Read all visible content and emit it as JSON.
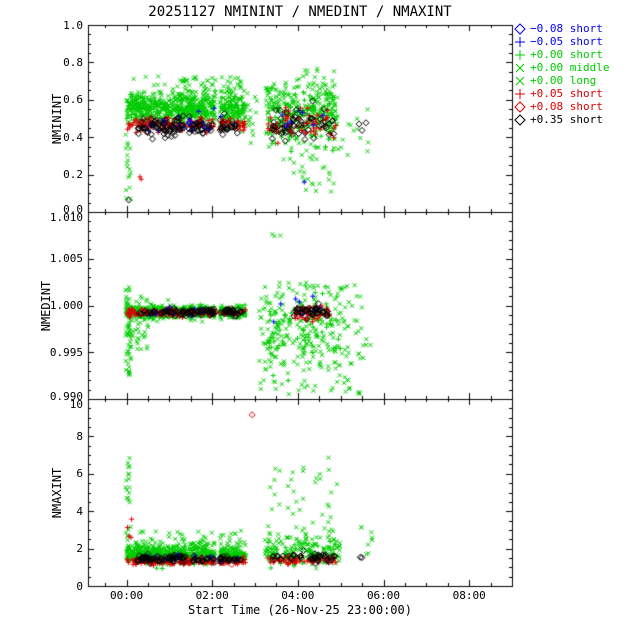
{
  "chart_data": {
    "type": "scatter",
    "title": "20251127 NMININT / NMEDINT / NMAXINT",
    "xlabel": "Start Time (26-Nov-25 23:00:00)",
    "x_range_hours": [
      -0.9,
      9.0
    ],
    "xminor": 0.5,
    "x_gaps": [
      [
        2.08,
        2.18
      ]
    ],
    "xticks": [
      {
        "v": 0,
        "label": "00:00"
      },
      {
        "v": 2,
        "label": "02:00"
      },
      {
        "v": 4,
        "label": "04:00"
      },
      {
        "v": 6,
        "label": "06:00"
      },
      {
        "v": 8,
        "label": "08:00"
      }
    ],
    "panels": [
      {
        "id": "nminint",
        "ylabel": "NMININT",
        "ymin": 0.0,
        "ymax": 1.0,
        "yminor": 0.05,
        "yticks": [
          {
            "v": 0.0,
            "label": "0.0"
          },
          {
            "v": 0.2,
            "label": "0.2"
          },
          {
            "v": 0.4,
            "label": "0.4"
          },
          {
            "v": 0.6,
            "label": "0.6"
          },
          {
            "v": 0.8,
            "label": "0.8"
          },
          {
            "v": 1.0,
            "label": "1.0"
          }
        ]
      },
      {
        "id": "nmedint",
        "ylabel": "NMEDINT",
        "ymin": 0.99,
        "ymax": 1.01,
        "yminor": 0.001,
        "yticks": [
          {
            "v": 0.99,
            "label": "0.990"
          },
          {
            "v": 0.995,
            "label": "0.995"
          },
          {
            "v": 1.0,
            "label": "1.000"
          },
          {
            "v": 1.005,
            "label": "1.005"
          },
          {
            "v": 1.01,
            "label": "1.010"
          }
        ]
      },
      {
        "id": "nmaxint",
        "ylabel": "NMAXINT",
        "ymin": 0,
        "ymax": 10,
        "yminor": 0.5,
        "yticks": [
          {
            "v": 0,
            "label": "0"
          },
          {
            "v": 2,
            "label": "2"
          },
          {
            "v": 4,
            "label": "4"
          },
          {
            "v": 6,
            "label": "6"
          },
          {
            "v": 8,
            "label": "8"
          },
          {
            "v": 10,
            "label": "10"
          }
        ]
      }
    ],
    "series": [
      {
        "id": "bd",
        "color": "#0000ff",
        "marker": "diamond",
        "label": "−0.08 short"
      },
      {
        "id": "bp",
        "color": "#0000ff",
        "marker": "plus",
        "label": "−0.05 short"
      },
      {
        "id": "gp",
        "color": "#00cc00",
        "marker": "plus",
        "label": "+0.00 short"
      },
      {
        "id": "gx",
        "color": "#00cc00",
        "marker": "x",
        "label": "+0.00 middle"
      },
      {
        "id": "gx2",
        "color": "#00cc00",
        "marker": "x",
        "label": "+0.00 long"
      },
      {
        "id": "rp",
        "color": "#dd0000",
        "marker": "plus",
        "label": "+0.05 short"
      },
      {
        "id": "rd",
        "color": "#dd0000",
        "marker": "diamond",
        "label": "+0.08 short"
      },
      {
        "id": "kd",
        "color": "#000000",
        "marker": "diamond",
        "label": "+0.35 short"
      }
    ],
    "clusters": [
      {
        "p": 0,
        "s": "gx",
        "n": 450,
        "x0": 0.0,
        "x1": 2.78,
        "ym": 0.56,
        "ys": 0.045
      },
      {
        "p": 0,
        "s": "gp",
        "n": 250,
        "x0": 0.0,
        "x1": 2.78,
        "ym": 0.54,
        "ys": 0.04
      },
      {
        "p": 0,
        "s": "gx2",
        "n": 70,
        "x0": 1.2,
        "x1": 2.75,
        "y0": 0.6,
        "y1": 0.73
      },
      {
        "p": 0,
        "s": "gx",
        "n": 22,
        "x0": -0.02,
        "x1": 0.1,
        "y0": 0.07,
        "y1": 0.52
      },
      {
        "p": 0,
        "s": "rp",
        "n": 150,
        "x0": 0.0,
        "x1": 2.78,
        "ym": 0.47,
        "ys": 0.02
      },
      {
        "p": 0,
        "s": "kd",
        "n": 120,
        "x0": 0.25,
        "x1": 2.65,
        "ym": 0.45,
        "ys": 0.025
      },
      {
        "p": 0,
        "s": "bp",
        "n": 22,
        "x0": 0.3,
        "x1": 2.6,
        "ym": 0.47,
        "ys": 0.03
      },
      {
        "p": 0,
        "s": "bd",
        "n": 9,
        "x0": 0.5,
        "x1": 2.5,
        "ym": 0.46,
        "ys": 0.02
      },
      {
        "p": 0,
        "s": "rd",
        "n": 8,
        "x0": 0.4,
        "x1": 2.6,
        "ym": 0.465,
        "ys": 0.02
      },
      {
        "p": 0,
        "s": "rp",
        "n": 2,
        "x0": 0.28,
        "x1": 0.42,
        "y0": 0.16,
        "y1": 0.19
      },
      {
        "p": 0,
        "s": "kd",
        "n": 1,
        "x0": 0.02,
        "x1": 0.06,
        "y0": 0.055,
        "y1": 0.065
      },
      {
        "p": 0,
        "s": "gx",
        "n": 14,
        "x0": 2.82,
        "x1": 3.05,
        "y0": 0.35,
        "y1": 0.65
      },
      {
        "p": 0,
        "s": "gx2",
        "n": 260,
        "x0": 3.25,
        "x1": 4.95,
        "ym": 0.55,
        "ys": 0.09
      },
      {
        "p": 0,
        "s": "gp",
        "n": 110,
        "x0": 3.3,
        "x1": 4.9,
        "ym": 0.5,
        "ys": 0.08
      },
      {
        "p": 0,
        "s": "gx",
        "n": 30,
        "x0": 3.8,
        "x1": 4.95,
        "y0": 0.1,
        "y1": 0.35
      },
      {
        "p": 0,
        "s": "rp",
        "n": 70,
        "x0": 3.3,
        "x1": 4.9,
        "ym": 0.48,
        "ys": 0.04
      },
      {
        "p": 0,
        "s": "kd",
        "n": 55,
        "x0": 3.4,
        "x1": 4.9,
        "ym": 0.46,
        "ys": 0.04
      },
      {
        "p": 0,
        "s": "bp",
        "n": 10,
        "x0": 3.5,
        "x1": 4.6,
        "ym": 0.5,
        "ys": 0.05
      },
      {
        "p": 0,
        "s": "bp",
        "n": 1,
        "x0": 4.1,
        "x1": 4.2,
        "y0": 0.16,
        "y1": 0.18
      },
      {
        "p": 0,
        "s": "gx",
        "n": 12,
        "x0": 5.0,
        "x1": 5.65,
        "y0": 0.3,
        "y1": 0.55
      },
      {
        "p": 0,
        "s": "kd",
        "n": 3,
        "x0": 5.4,
        "x1": 5.6,
        "y0": 0.43,
        "y1": 0.5
      },
      {
        "p": 1,
        "s": "gx",
        "n": 420,
        "x0": 0.0,
        "x1": 2.78,
        "ym": 0.9993,
        "ys": 0.00035
      },
      {
        "p": 1,
        "s": "gp",
        "n": 200,
        "x0": 0.0,
        "x1": 2.78,
        "ym": 0.9993,
        "ys": 0.00025
      },
      {
        "p": 1,
        "s": "rp",
        "n": 140,
        "x0": 0.0,
        "x1": 2.78,
        "ym": 0.99925,
        "ys": 0.0002
      },
      {
        "p": 1,
        "s": "kd",
        "n": 100,
        "x0": 0.25,
        "x1": 2.7,
        "ym": 0.9993,
        "ys": 0.00018
      },
      {
        "p": 1,
        "s": "bp",
        "n": 14,
        "x0": 0.3,
        "x1": 2.6,
        "ym": 0.9994,
        "ys": 0.0003
      },
      {
        "p": 1,
        "s": "rd",
        "n": 6,
        "x0": 0.5,
        "x1": 2.6,
        "ym": 0.9992,
        "ys": 0.0002
      },
      {
        "p": 1,
        "s": "gx",
        "n": 50,
        "x0": -0.02,
        "x1": 0.1,
        "y0": 0.9925,
        "y1": 1.0022
      },
      {
        "p": 1,
        "s": "gx",
        "n": 45,
        "x0": 0.0,
        "x1": 0.5,
        "y0": 0.995,
        "y1": 1.0012
      },
      {
        "p": 1,
        "s": "gx2",
        "n": 170,
        "x0": 3.05,
        "x1": 5.5,
        "y0": 0.9905,
        "y1": 1.0025
      },
      {
        "p": 1,
        "s": "gx",
        "n": 110,
        "x0": 3.2,
        "x1": 5.0,
        "ym": 0.997,
        "ys": 0.002
      },
      {
        "p": 1,
        "s": "gx2",
        "n": 3,
        "x0": 3.4,
        "x1": 3.6,
        "y0": 1.006,
        "y1": 1.008
      },
      {
        "p": 1,
        "s": "gp",
        "n": 60,
        "x0": 3.3,
        "x1": 5.0,
        "ym": 0.9975,
        "ys": 0.002
      },
      {
        "p": 1,
        "s": "rp",
        "n": 55,
        "x0": 3.9,
        "x1": 4.75,
        "ym": 0.9993,
        "ys": 0.0004
      },
      {
        "p": 1,
        "s": "kd",
        "n": 40,
        "x0": 3.9,
        "x1": 4.7,
        "ym": 0.9994,
        "ys": 0.0003
      },
      {
        "p": 1,
        "s": "bp",
        "n": 8,
        "x0": 3.4,
        "x1": 4.6,
        "ym": 0.9997,
        "ys": 0.0008
      },
      {
        "p": 1,
        "s": "gx",
        "n": 8,
        "x0": 5.4,
        "x1": 5.7,
        "y0": 0.994,
        "y1": 0.999
      },
      {
        "p": 2,
        "s": "gx",
        "n": 420,
        "x0": 0.0,
        "x1": 2.78,
        "ym": 1.8,
        "ys": 0.25
      },
      {
        "p": 2,
        "s": "gp",
        "n": 190,
        "x0": 0.0,
        "x1": 2.78,
        "ym": 1.6,
        "ys": 0.18
      },
      {
        "p": 2,
        "s": "gx2",
        "n": 40,
        "x0": 0.2,
        "x1": 2.7,
        "y0": 2.2,
        "y1": 3.0
      },
      {
        "p": 2,
        "s": "rp",
        "n": 150,
        "x0": 0.0,
        "x1": 2.78,
        "ym": 1.3,
        "ys": 0.09
      },
      {
        "p": 2,
        "s": "kd",
        "n": 110,
        "x0": 0.25,
        "x1": 2.7,
        "ym": 1.45,
        "ys": 0.1
      },
      {
        "p": 2,
        "s": "bp",
        "n": 14,
        "x0": 0.3,
        "x1": 2.6,
        "ym": 1.5,
        "ys": 0.15
      },
      {
        "p": 2,
        "s": "bd",
        "n": 5,
        "x0": 0.6,
        "x1": 2.4,
        "ym": 1.45,
        "ys": 0.1
      },
      {
        "p": 2,
        "s": "rd",
        "n": 8,
        "x0": 0.5,
        "x1": 2.5,
        "ym": 1.3,
        "ys": 0.08
      },
      {
        "p": 2,
        "s": "gx",
        "n": 22,
        "x0": -0.02,
        "x1": 0.1,
        "y0": 2.0,
        "y1": 7.0
      },
      {
        "p": 2,
        "s": "rp",
        "n": 4,
        "x0": 0.0,
        "x1": 0.12,
        "y0": 2.5,
        "y1": 4.0
      },
      {
        "p": 2,
        "s": "gx2",
        "n": 140,
        "x0": 3.2,
        "x1": 5.0,
        "ym": 1.9,
        "ys": 0.4
      },
      {
        "p": 2,
        "s": "gx",
        "n": 45,
        "x0": 3.3,
        "x1": 5.0,
        "y0": 2.5,
        "y1": 7.0
      },
      {
        "p": 2,
        "s": "gp",
        "n": 50,
        "x0": 3.3,
        "x1": 4.9,
        "ym": 1.7,
        "ys": 0.3
      },
      {
        "p": 2,
        "s": "rp",
        "n": 65,
        "x0": 3.3,
        "x1": 4.9,
        "ym": 1.35,
        "ys": 0.1
      },
      {
        "p": 2,
        "s": "kd",
        "n": 45,
        "x0": 3.4,
        "x1": 4.9,
        "ym": 1.5,
        "ys": 0.13
      },
      {
        "p": 2,
        "s": "rd",
        "n": 1,
        "x0": 2.92,
        "x1": 2.94,
        "y0": 9.15,
        "y1": 9.25
      },
      {
        "p": 2,
        "s": "gx",
        "n": 8,
        "x0": 5.45,
        "x1": 5.75,
        "y0": 1.5,
        "y1": 3.6
      },
      {
        "p": 2,
        "s": "kd",
        "n": 2,
        "x0": 5.45,
        "x1": 5.6,
        "y0": 1.4,
        "y1": 1.6
      }
    ],
    "legend_position": "top-right-outside",
    "grid": false
  }
}
